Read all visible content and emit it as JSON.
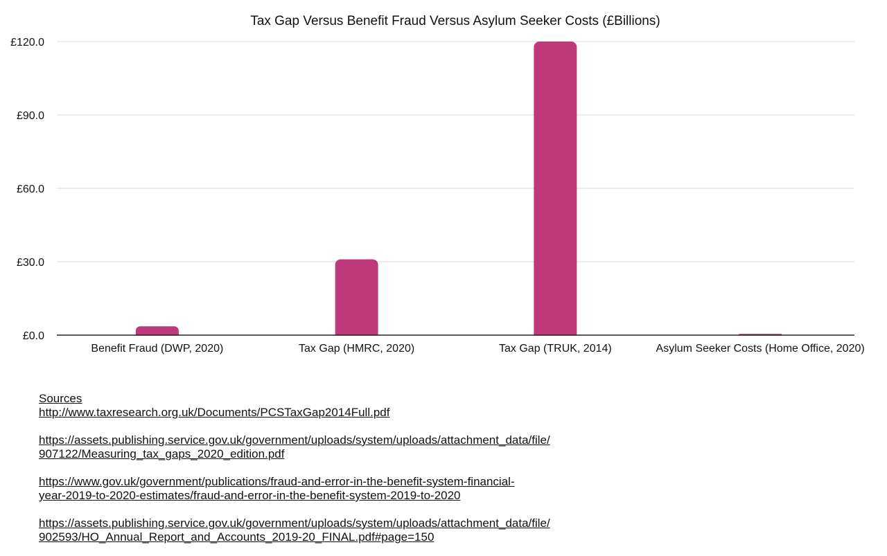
{
  "chart_data": {
    "type": "bar",
    "title": "Tax Gap Versus Benefit Fraud Versus Asylum Seeker Costs (£Billions)",
    "categories": [
      "Benefit Fraud (DWP, 2020)",
      "Tax Gap (HMRC, 2020)",
      "Tax Gap (TRUK, 2014)",
      "Asylum Seeker Costs (Home Office, 2020)"
    ],
    "values": [
      3.6,
      31.0,
      120.0,
      0.5
    ],
    "ylim": [
      0,
      120
    ],
    "yticks": [
      "£0.0",
      "£30.0",
      "£60.0",
      "£90.0",
      "£120.0"
    ],
    "ytick_values": [
      0,
      30,
      60,
      90,
      120
    ],
    "grid": true,
    "colors": {
      "bar": "#be3a7a",
      "grid": "#d9d9d9",
      "axis": "#222222"
    }
  },
  "sources": {
    "heading": "Sources",
    "links": [
      {
        "lines": [
          "http://www.taxresearch.org.uk/Documents/PCSTaxGap2014Full.pdf"
        ]
      },
      {
        "lines": [
          "https://assets.publishing.service.gov.uk/government/uploads/system/uploads/attachment_data/file/",
          "907122/Measuring_tax_gaps_2020_edition.pdf"
        ]
      },
      {
        "lines": [
          "https://www.gov.uk/government/publications/fraud-and-error-in-the-benefit-system-financial-",
          "year-2019-to-2020-estimates/fraud-and-error-in-the-benefit-system-2019-to-2020"
        ]
      },
      {
        "lines": [
          "https://assets.publishing.service.gov.uk/government/uploads/system/uploads/attachment_data/file/",
          "902593/HO_Annual_Report_and_Accounts_2019-20_FINAL.pdf#page=150"
        ]
      }
    ]
  }
}
